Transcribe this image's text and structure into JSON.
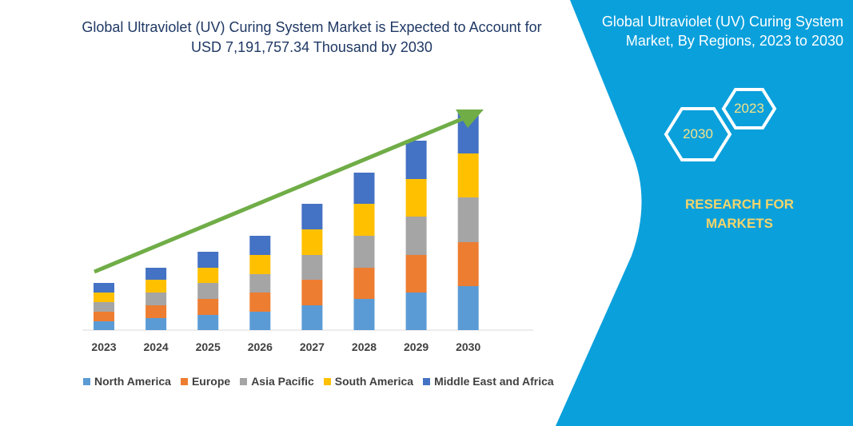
{
  "title": "Global Ultraviolet (UV) Curing System Market is Expected to Account for USD 7,191,757.34 Thousand by 2030",
  "side_panel": {
    "title": "Global Ultraviolet (UV) Curing System Market, By Regions, 2023 to 2030",
    "hex_start": "2023",
    "hex_end": "2030",
    "brand": "RESEARCH FOR MARKETS",
    "background_color": "#0aa0dc",
    "brand_color": "#f3d46b"
  },
  "chart_data": {
    "type": "bar",
    "stacked": true,
    "title": "Global Ultraviolet (UV) Curing System Market is Expected to Account for USD 7,191,757.34 Thousand by 2030",
    "categories": [
      "2023",
      "2024",
      "2025",
      "2026",
      "2027",
      "2028",
      "2029",
      "2030"
    ],
    "series": [
      {
        "name": "North America",
        "color": "#5b9bd5",
        "values": [
          11,
          15,
          19,
          23,
          31,
          39,
          47,
          55
        ]
      },
      {
        "name": "Europe",
        "color": "#ed7d31",
        "values": [
          12,
          16,
          20,
          24,
          32,
          39,
          47,
          55
        ]
      },
      {
        "name": "Asia Pacific",
        "color": "#a5a5a5",
        "values": [
          12,
          16,
          20,
          23,
          31,
          40,
          48,
          56
        ]
      },
      {
        "name": "South America",
        "color": "#ffc000",
        "values": [
          12,
          16,
          19,
          24,
          32,
          40,
          47,
          55
        ]
      },
      {
        "name": "Middle East and Africa",
        "color": "#4472c4",
        "values": [
          12,
          15,
          20,
          24,
          32,
          39,
          48,
          55
        ]
      }
    ],
    "xlabel": "",
    "ylabel": "",
    "ylim": [
      0,
      280
    ],
    "y_axis_visible": false,
    "grid": false,
    "legend_position": "bottom",
    "trend_arrow_color": "#70ad47"
  }
}
